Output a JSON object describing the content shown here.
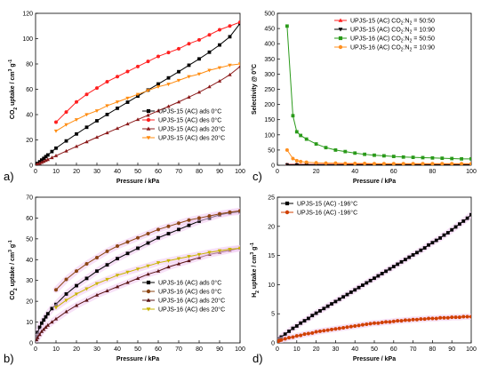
{
  "panel_letters": [
    "a)",
    "b)",
    "c)",
    "d)"
  ],
  "chart_data": [
    {
      "type": "line",
      "xlabel": "Pressure / kPa",
      "ylabel": "CO2 uptake / cm3 g-1",
      "xlim": [
        0,
        100
      ],
      "ylim": [
        0,
        120
      ],
      "xticks": [
        0,
        10,
        20,
        30,
        40,
        50,
        60,
        70,
        80,
        90,
        100
      ],
      "yticks": [
        0,
        20,
        40,
        60,
        80,
        100,
        120
      ],
      "legend_position": "bottom-right",
      "series": [
        {
          "name": "UPJS-15 (AC) ads 0°C",
          "color": "#000000",
          "marker": "square",
          "x": [
            0.5,
            1,
            2,
            3,
            4,
            5,
            6,
            8,
            10,
            15,
            20,
            25,
            30,
            35,
            40,
            45,
            50,
            55,
            60,
            65,
            70,
            75,
            80,
            85,
            90,
            95,
            100
          ],
          "y": [
            0.7,
            1.4,
            2.7,
            4.1,
            5.4,
            6.8,
            8.1,
            10.8,
            13.5,
            19.2,
            24.7,
            30.0,
            35.1,
            40.1,
            45.0,
            49.8,
            54.6,
            59.4,
            64.2,
            69.0,
            73.9,
            79.0,
            84.0,
            89.3,
            95.0,
            101.5,
            112.0
          ]
        },
        {
          "name": "UPJS-15 (AC) des 0°C",
          "color": "#ff2020",
          "marker": "circle",
          "x": [
            10,
            15,
            20,
            25,
            30,
            35,
            40,
            45,
            50,
            55,
            60,
            65,
            70,
            75,
            80,
            85,
            90,
            95,
            100
          ],
          "y": [
            34,
            42,
            50,
            56,
            61,
            66,
            70,
            74,
            78,
            82,
            86,
            89,
            92,
            96,
            99,
            103,
            107,
            110,
            113
          ]
        },
        {
          "name": "UPJS-15 (AC) ads 20°C",
          "color": "#8b1a1a",
          "marker": "triangle",
          "x": [
            0.5,
            1,
            2,
            3,
            4,
            5,
            6,
            8,
            10,
            15,
            20,
            25,
            30,
            35,
            40,
            45,
            50,
            55,
            60,
            65,
            70,
            75,
            80,
            85,
            90,
            95,
            100
          ],
          "y": [
            0.4,
            0.8,
            1.5,
            2.3,
            3.0,
            3.8,
            4.5,
            6.0,
            7.5,
            11.2,
            14.9,
            18.5,
            22.1,
            25.6,
            29.1,
            32.6,
            36.1,
            39.5,
            43.0,
            46.5,
            50.0,
            53.8,
            57.7,
            62.0,
            66.5,
            71.5,
            78.0
          ]
        },
        {
          "name": "UPJS-15 (AC) des 20°C",
          "color": "#ff8c10",
          "marker": "triangle-down",
          "x": [
            10,
            15,
            20,
            25,
            30,
            35,
            40,
            45,
            50,
            55,
            60,
            65,
            70,
            75,
            80,
            85,
            90,
            95,
            100
          ],
          "y": [
            27,
            32,
            36,
            40,
            43,
            47,
            50,
            53,
            56,
            59,
            62,
            64,
            67,
            70,
            72,
            75,
            77,
            79,
            80
          ]
        }
      ]
    },
    {
      "type": "line",
      "xlabel": "Pressure / kPa",
      "ylabel": "CO2 uptake / cm3 g-1",
      "xlim": [
        0,
        100
      ],
      "ylim": [
        0,
        70
      ],
      "xticks": [
        0,
        10,
        20,
        30,
        40,
        50,
        60,
        70,
        80,
        90,
        100
      ],
      "yticks": [
        0,
        10,
        20,
        30,
        40,
        50,
        60,
        70
      ],
      "legend_position": "bottom-right",
      "series": [
        {
          "name": "UPJS-16 (AC) ads 0°C",
          "color": "#000000",
          "marker": "square",
          "x": [
            0.5,
            1,
            2,
            3,
            4,
            5,
            6,
            8,
            10,
            15,
            20,
            25,
            30,
            35,
            40,
            45,
            50,
            55,
            60,
            65,
            70,
            75,
            80,
            85,
            90,
            95,
            100
          ],
          "y": [
            3,
            5,
            7.5,
            9.5,
            11,
            12.5,
            14,
            16.5,
            18.5,
            23.5,
            27.5,
            31,
            34.5,
            37.5,
            40.5,
            43,
            45.5,
            48,
            50.5,
            52.5,
            54.5,
            56.5,
            58.5,
            60,
            61.5,
            62.5,
            63
          ]
        },
        {
          "name": "UPJS-16 (AC) des 0°C",
          "color": "#8b4513",
          "marker": "circle",
          "x": [
            10,
            15,
            20,
            25,
            30,
            35,
            40,
            45,
            50,
            55,
            60,
            65,
            70,
            75,
            80,
            85,
            90,
            95,
            100
          ],
          "y": [
            25.5,
            30.5,
            34.5,
            38,
            41,
            44,
            46.5,
            48.5,
            50.5,
            52.5,
            54.5,
            56,
            57.5,
            59,
            60,
            61,
            62,
            62.8,
            63.5
          ]
        },
        {
          "name": "UPJS-16 (AC) ads 20°C",
          "color": "#5a1414",
          "marker": "triangle",
          "x": [
            0.5,
            1,
            2,
            3,
            4,
            5,
            6,
            8,
            10,
            15,
            20,
            25,
            30,
            35,
            40,
            45,
            50,
            55,
            60,
            65,
            70,
            75,
            80,
            85,
            90,
            95,
            100
          ],
          "y": [
            1.5,
            2.5,
            4,
            5.5,
            6.5,
            7.5,
            8.5,
            10,
            11.5,
            15,
            18,
            20.5,
            23,
            25,
            27,
            29,
            31,
            33,
            34.5,
            36.5,
            38,
            39.5,
            41,
            42.5,
            43.5,
            44.5,
            45.5
          ]
        },
        {
          "name": "UPJS-16 (AC) des 20°C",
          "color": "#c8b400",
          "marker": "triangle-down",
          "x": [
            10,
            15,
            20,
            25,
            30,
            35,
            40,
            45,
            50,
            55,
            60,
            65,
            70,
            75,
            80,
            85,
            90,
            95,
            100
          ],
          "y": [
            17,
            20.5,
            23.5,
            26,
            28.5,
            30.5,
            32.5,
            34,
            35.5,
            37,
            38.5,
            39.5,
            40.5,
            41.5,
            42.5,
            43.5,
            44.3,
            45,
            45.5
          ]
        }
      ]
    },
    {
      "type": "line",
      "xlabel": "Pressure / kPa",
      "ylabel": "Selectivity @ 0°C",
      "xlim": [
        0,
        100
      ],
      "ylim": [
        0,
        500
      ],
      "xticks": [
        0,
        20,
        40,
        60,
        80,
        100
      ],
      "yticks": [
        0,
        50,
        100,
        150,
        200,
        250,
        300,
        350,
        400,
        450,
        500
      ],
      "legend_position": "top-right",
      "series": [
        {
          "name": "UPJS-15 (AC) CO2:N2 = 50:50",
          "color": "#ff2020",
          "marker": "triangle",
          "x": [
            5,
            10,
            15,
            20,
            25,
            30,
            35,
            40,
            45,
            50,
            55,
            60,
            65,
            70,
            75,
            80,
            85,
            90,
            95,
            100
          ],
          "y": [
            3,
            3,
            3,
            3,
            3,
            3,
            3,
            3,
            3,
            3,
            3,
            3,
            3,
            3,
            3,
            3,
            3,
            3,
            3,
            3
          ]
        },
        {
          "name": "UPJS-15 (AC) CO2:N2 = 10:90",
          "color": "#000000",
          "marker": "triangle-down",
          "x": [
            5,
            10,
            15,
            20,
            25,
            30,
            35,
            40,
            45,
            50,
            55,
            60,
            65,
            70,
            75,
            80,
            85,
            90,
            95,
            100
          ],
          "y": [
            2,
            2,
            2,
            2,
            2,
            2,
            2,
            2,
            2,
            2,
            2,
            2,
            2,
            2,
            2,
            2,
            2,
            2,
            2,
            2
          ]
        },
        {
          "name": "UPJS-16 (AC) CO2:N2 = 50:50",
          "color": "#2a9a1a",
          "marker": "square",
          "x": [
            5,
            8,
            10,
            12,
            15,
            20,
            25,
            30,
            35,
            40,
            45,
            50,
            55,
            60,
            65,
            70,
            75,
            80,
            85,
            90,
            95,
            100
          ],
          "y": [
            458,
            163,
            110,
            98,
            86,
            70,
            58,
            50,
            45,
            40,
            36,
            33,
            31,
            29,
            27,
            26,
            25,
            24,
            23,
            22,
            21,
            21
          ]
        },
        {
          "name": "UPJS-16 (AC) CO2:N2 = 10:90",
          "color": "#ff9020",
          "marker": "circle",
          "x": [
            5,
            8,
            10,
            12,
            15,
            20,
            25,
            30,
            35,
            40,
            45,
            50,
            55,
            60,
            65,
            70,
            75,
            80,
            85,
            90,
            95,
            100
          ],
          "y": [
            50,
            22,
            15,
            12,
            10,
            8,
            7,
            7,
            6,
            6,
            6,
            5,
            5,
            5,
            5,
            5,
            5,
            5,
            5,
            5,
            5,
            5
          ]
        }
      ]
    },
    {
      "type": "line",
      "xlabel": "Pressure / kPa",
      "ylabel": "H2 uptake / cm3 g-1",
      "xlim": [
        0,
        100
      ],
      "ylim": [
        0,
        25
      ],
      "xticks": [
        0,
        10,
        20,
        30,
        40,
        50,
        60,
        70,
        80,
        90,
        100
      ],
      "yticks": [
        0,
        5,
        10,
        15,
        20,
        25
      ],
      "legend_position": "top-left",
      "series": [
        {
          "name": "UPJS-15 (AC) -196°C",
          "color": "#000000",
          "marker": "square",
          "x": [
            0.5,
            1,
            2,
            4,
            6,
            8,
            10,
            12,
            14,
            16,
            18,
            20,
            22,
            24,
            26,
            28,
            30,
            32,
            34,
            36,
            38,
            40,
            42,
            44,
            46,
            48,
            50,
            52,
            54,
            56,
            58,
            60,
            62,
            64,
            66,
            68,
            70,
            72,
            74,
            76,
            78,
            80,
            82,
            84,
            86,
            88,
            90,
            92,
            94,
            96,
            98,
            100
          ],
          "y": [
            0.5,
            0.7,
            1.0,
            1.5,
            2.0,
            2.5,
            2.9,
            3.4,
            3.8,
            4.2,
            4.7,
            5.1,
            5.5,
            5.9,
            6.3,
            6.7,
            7.1,
            7.5,
            7.9,
            8.3,
            8.7,
            9.1,
            9.5,
            9.9,
            10.3,
            10.7,
            11.1,
            11.5,
            11.9,
            12.3,
            12.7,
            13.1,
            13.5,
            13.9,
            14.3,
            14.7,
            15.1,
            15.5,
            15.9,
            16.3,
            16.8,
            17.2,
            17.6,
            18.0,
            18.5,
            18.9,
            19.4,
            19.9,
            20.4,
            20.9,
            21.4,
            22.0
          ]
        },
        {
          "name": "UPJS-16 (AC) -196°C",
          "color": "#d04000",
          "marker": "circle",
          "x": [
            0.5,
            1,
            2,
            4,
            6,
            8,
            10,
            12,
            14,
            16,
            18,
            20,
            22,
            24,
            26,
            28,
            30,
            32,
            34,
            36,
            38,
            40,
            42,
            44,
            46,
            48,
            50,
            52,
            54,
            56,
            58,
            60,
            62,
            64,
            66,
            68,
            70,
            72,
            74,
            76,
            78,
            80,
            82,
            84,
            86,
            88,
            90,
            92,
            94,
            96,
            98,
            100
          ],
          "y": [
            0.3,
            0.4,
            0.5,
            0.7,
            0.9,
            1.0,
            1.2,
            1.3,
            1.5,
            1.6,
            1.7,
            1.9,
            2.0,
            2.1,
            2.2,
            2.3,
            2.4,
            2.5,
            2.6,
            2.7,
            2.8,
            2.9,
            3.0,
            3.1,
            3.2,
            3.3,
            3.4,
            3.4,
            3.5,
            3.6,
            3.6,
            3.7,
            3.8,
            3.8,
            3.9,
            3.9,
            4.0,
            4.0,
            4.1,
            4.1,
            4.2,
            4.2,
            4.2,
            4.3,
            4.3,
            4.3,
            4.4,
            4.4,
            4.4,
            4.5,
            4.5,
            4.5
          ]
        }
      ]
    }
  ]
}
